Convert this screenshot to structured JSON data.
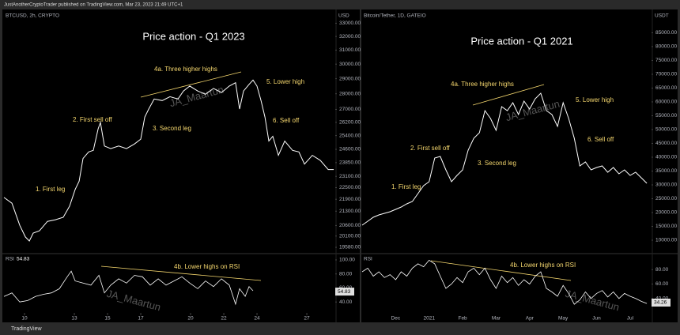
{
  "header": "JustAnotherCryptoTrader published on TradingView.com, Mar 23, 2023 21:49 UTC+1",
  "footer": "TradingView",
  "chart_data": [
    {
      "type": "line",
      "title": "Price action - Q1 2023",
      "symbol": "BTCUSD, 2h, CRYPTO",
      "unit": "USD",
      "log": true,
      "color": "#ffffff",
      "x": [
        8.76,
        9.24,
        9.71,
        10.05,
        10.29,
        10.52,
        10.9,
        11.38,
        11.86,
        12.33,
        12.71,
        13.05,
        13.29,
        13.52,
        13.86,
        14.14,
        14.43,
        14.57,
        14.81,
        15.19,
        15.67,
        16.14,
        16.62,
        17,
        17.24,
        17.48,
        17.81,
        18.29,
        18.76,
        19.24,
        19.57,
        19.95,
        20.43,
        20.9,
        21.38,
        21.86,
        22.33,
        22.71,
        22.95,
        23.19,
        23.52,
        23.76,
        24,
        24.24,
        24.48,
        24.71,
        24.95,
        25.29,
        25.67,
        26.14,
        26.52,
        26.86,
        27.33,
        27.81,
        28.29,
        28.62
      ],
      "values": [
        21990,
        21700,
        20610,
        20060,
        19870,
        20240,
        20350,
        20800,
        20880,
        21000,
        21550,
        22410,
        22840,
        24080,
        24450,
        24540,
        25800,
        26190,
        24790,
        24640,
        24790,
        24640,
        24910,
        25190,
        26520,
        27020,
        27660,
        27560,
        27810,
        27660,
        28180,
        28510,
        28180,
        27970,
        28350,
        28080,
        28510,
        28730,
        27020,
        28180,
        28620,
        28910,
        28510,
        27560,
        26520,
        25080,
        25360,
        24260,
        25080,
        24540,
        24450,
        23770,
        24260,
        23980,
        23470,
        23470
      ],
      "xlim": [
        8.76,
        28.76
      ],
      "xticks": [
        10,
        13,
        15,
        17,
        20,
        22,
        24,
        27
      ],
      "ylim": [
        19330,
        33700
      ],
      "yticks": [
        {
          "value": 19580,
          "label": "19580.00"
        },
        {
          "value": 20100,
          "label": "20100.00"
        },
        {
          "value": 20600,
          "label": "20600.00"
        },
        {
          "value": 21300,
          "label": "21300.00"
        },
        {
          "value": 21900,
          "label": "21900.00"
        },
        {
          "value": 22500,
          "label": "22500.00"
        },
        {
          "value": 23100,
          "label": "23100.00"
        },
        {
          "value": 23850,
          "label": "23850.00"
        },
        {
          "value": 24600,
          "label": "24600.00"
        },
        {
          "value": 25400,
          "label": "25400.00"
        },
        {
          "value": 26200,
          "label": "26200.00"
        },
        {
          "value": 27000,
          "label": "27000.00"
        },
        {
          "value": 28000,
          "label": "28000.00"
        },
        {
          "value": 29000,
          "label": "29000.00"
        },
        {
          "value": 30000,
          "label": "30000.00"
        },
        {
          "value": 31000,
          "label": "31000.00"
        },
        {
          "value": 32000,
          "label": "32000.00"
        },
        {
          "value": 33000,
          "label": "33000.00"
        }
      ],
      "annotations": [
        "1. First leg",
        "2. First sell off",
        "3. Second leg",
        "4a. Three higher highs",
        "5. Lower high",
        "6. Sell off"
      ],
      "watermark": "JA_Maartun",
      "rsi": {
        "label": "RSI",
        "current": 54.83,
        "color": "#ffffff",
        "x": [
          8.76,
          9.24,
          9.71,
          10.19,
          10.67,
          11.14,
          11.62,
          12.1,
          12.57,
          12.81,
          13.05,
          13.52,
          14,
          14.48,
          14.81,
          15.19,
          15.67,
          16.14,
          16.62,
          17.1,
          17.57,
          18.05,
          18.52,
          19,
          19.48,
          19.95,
          20.43,
          20.9,
          21.38,
          21.86,
          22.33,
          22.71,
          22.95,
          23.29,
          23.52,
          23.76
        ],
        "values": [
          47.8,
          53,
          40,
          42,
          48,
          51,
          53,
          59,
          76,
          84,
          70,
          67,
          64,
          78,
          53,
          64,
          73,
          67,
          78,
          76,
          64,
          73,
          64,
          70,
          76,
          67,
          59,
          70,
          62,
          73,
          64,
          37,
          59,
          48,
          62,
          56
        ],
        "ylim": [
          25.6,
          105.6
        ],
        "yticks": [
          {
            "value": 40,
            "label": "40.00"
          },
          {
            "value": 60,
            "label": "60.00"
          },
          {
            "value": 80,
            "label": "80.00"
          },
          {
            "value": 100,
            "label": "100.00"
          }
        ],
        "annotation": "4b. Lower highs on RSI"
      }
    },
    {
      "type": "line",
      "title": "Price action - Q1 2021",
      "symbol": "Bitcoin/Tether, 1D, GATEIO",
      "unit": "USDT",
      "log": false,
      "color": "#ffffff",
      "categories": [
        null,
        null,
        null,
        null,
        null,
        null,
        "Dec",
        null,
        null,
        null,
        null,
        null,
        "2021",
        null,
        null,
        null,
        null,
        null,
        "Feb",
        null,
        null,
        null,
        null,
        null,
        "Mar",
        null,
        null,
        null,
        null,
        null,
        "Apr",
        null,
        null,
        null,
        null,
        null,
        "May",
        null,
        null,
        null,
        null,
        null,
        "Jun",
        null,
        null,
        null,
        null,
        null,
        "Jul",
        null,
        null,
        null
      ],
      "values": [
        15430,
        16860,
        18290,
        19140,
        19710,
        20290,
        21140,
        22000,
        23140,
        24000,
        26860,
        29710,
        31140,
        39710,
        40290,
        35430,
        31140,
        33430,
        35430,
        42570,
        46860,
        48860,
        56860,
        54000,
        49710,
        58290,
        56860,
        59710,
        55430,
        60290,
        57430,
        61140,
        63140,
        56860,
        55430,
        51140,
        59710,
        54000,
        46860,
        36860,
        38290,
        35430,
        36290,
        36860,
        34570,
        36290,
        34000,
        35430,
        33430,
        34570,
        32570,
        30570
      ],
      "ylim": [
        5430,
        91700
      ],
      "yticks": [
        {
          "value": 10000,
          "label": "10000.00"
        },
        {
          "value": 15000,
          "label": "15000.00"
        },
        {
          "value": 20000,
          "label": "20000.00"
        },
        {
          "value": 25000,
          "label": "25000.00"
        },
        {
          "value": 30000,
          "label": "30000.00"
        },
        {
          "value": 35000,
          "label": "35000.00"
        },
        {
          "value": 40000,
          "label": "40000.00"
        },
        {
          "value": 45000,
          "label": "45000.00"
        },
        {
          "value": 50000,
          "label": "50000.00"
        },
        {
          "value": 55000,
          "label": "55000.00"
        },
        {
          "value": 60000,
          "label": "60000.00"
        },
        {
          "value": 65000,
          "label": "65000.00"
        },
        {
          "value": 70000,
          "label": "70000.00"
        },
        {
          "value": 75000,
          "label": "75000.00"
        },
        {
          "value": 80000,
          "label": "80000.00"
        },
        {
          "value": 85000,
          "label": "85000.00"
        }
      ],
      "annotations": [
        "1. First leg",
        "2. First sell off",
        "3. Second leg",
        "4a. Three higher highs",
        "5. Lower high",
        "6. Sell off"
      ],
      "watermark": "JA_Maartun",
      "rsi": {
        "label": "RSI",
        "current": 34.26,
        "color": "#ffffff",
        "values": [
          77,
          82,
          71,
          77,
          69,
          73,
          66,
          77,
          71,
          82,
          88,
          84,
          93,
          88,
          71,
          54,
          60,
          69,
          62,
          77,
          82,
          73,
          82,
          66,
          54,
          71,
          62,
          69,
          58,
          66,
          60,
          71,
          77,
          54,
          49,
          43,
          58,
          47,
          32,
          38,
          49,
          40,
          47,
          51,
          42,
          49,
          40,
          47,
          43,
          40,
          36,
          33
        ],
        "ylim": [
          21.1,
          98.9
        ],
        "yticks": [
          {
            "value": 40,
            "label": "40.00"
          },
          {
            "value": 60,
            "label": "60.00"
          },
          {
            "value": 80,
            "label": "80.00"
          }
        ],
        "annotation": "4b. Lower highs on RSI"
      }
    }
  ]
}
